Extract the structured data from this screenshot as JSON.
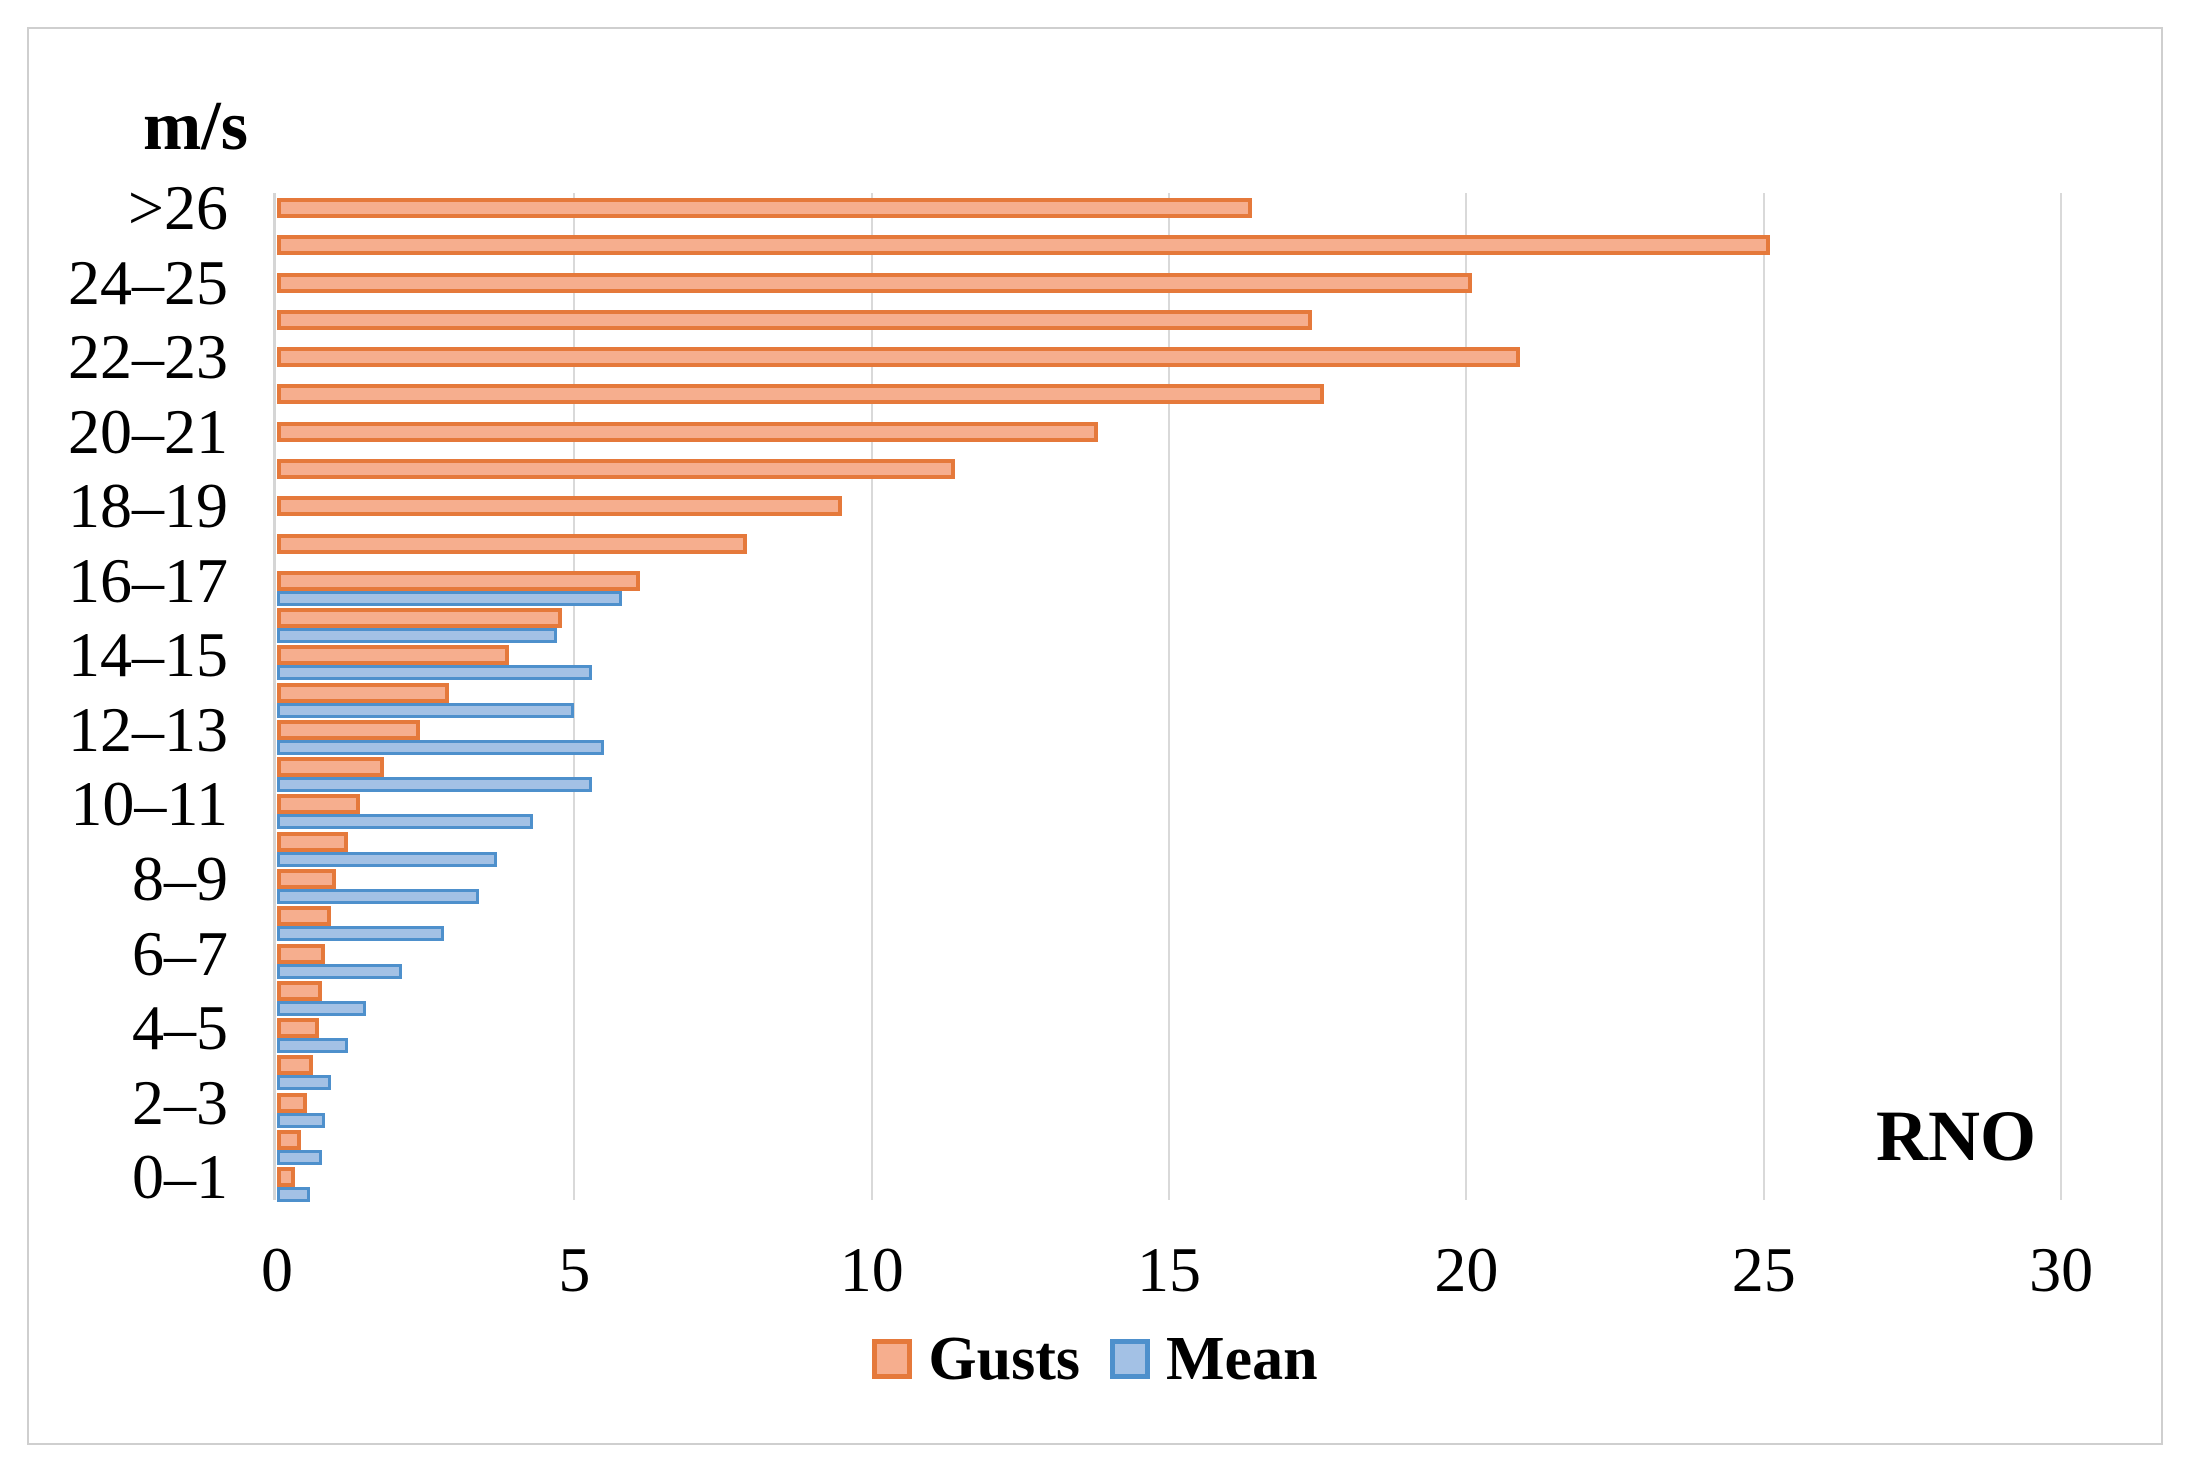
{
  "chart": {
    "unit_label": "m/s",
    "station_label": "RNO",
    "colors": {
      "gusts_fill": "#f6ae8e",
      "gusts_border": "#e5793b",
      "mean_fill": "#a3c1e5",
      "mean_border": "#4e90cc",
      "gridline": "#d9d9d9",
      "axis_line": "#d5d5d5",
      "frame_border": "#cfcfcf"
    },
    "legend": [
      {
        "label": "Gusts"
      },
      {
        "label": "Mean"
      }
    ]
  },
  "chart_data": {
    "type": "bar",
    "orientation": "horizontal",
    "title": "m/s",
    "annotation": "RNO",
    "legend_position": "bottom-center",
    "grid": "vertical-only",
    "x_axis": {
      "min": 0,
      "max": 30,
      "ticks": [
        0,
        5,
        10,
        15,
        20,
        25,
        30
      ]
    },
    "y_axis_note": "wind speed bins, labels shown on every other row, top to bottom",
    "y_axis_tick_labels": [
      ">26",
      "24–25",
      "22–23",
      "20–21",
      "18–19",
      "16–17",
      "14–15",
      "12–13",
      "10–11",
      "8–9",
      "6–7",
      "4–5",
      "2–3",
      "0–1"
    ],
    "categories": [
      ">26",
      "",
      "24–25",
      "",
      "22–23",
      "",
      "20–21",
      "",
      "18–19",
      "",
      "16–17",
      "",
      "14–15",
      "",
      "12–13",
      "",
      "10–11",
      "",
      "8–9",
      "",
      "6–7",
      "",
      "4–5",
      "",
      "2–3",
      "",
      "0–1"
    ],
    "series": [
      {
        "name": "Gusts",
        "values": [
          16.4,
          25.1,
          20.1,
          17.4,
          20.9,
          17.6,
          13.8,
          11.4,
          9.5,
          7.9,
          6.1,
          4.8,
          3.9,
          2.9,
          2.4,
          1.8,
          1.4,
          1.2,
          1.0,
          0.9,
          0.8,
          0.75,
          0.7,
          0.6,
          0.5,
          0.4,
          0.3
        ]
      },
      {
        "name": "Mean",
        "values": [
          0,
          0,
          0,
          0,
          0,
          0,
          0,
          0,
          0,
          0,
          5.8,
          4.7,
          5.3,
          5.0,
          5.5,
          5.3,
          4.3,
          3.7,
          3.4,
          2.8,
          2.1,
          1.5,
          1.2,
          0.9,
          0.8,
          0.75,
          0.55
        ]
      }
    ]
  }
}
